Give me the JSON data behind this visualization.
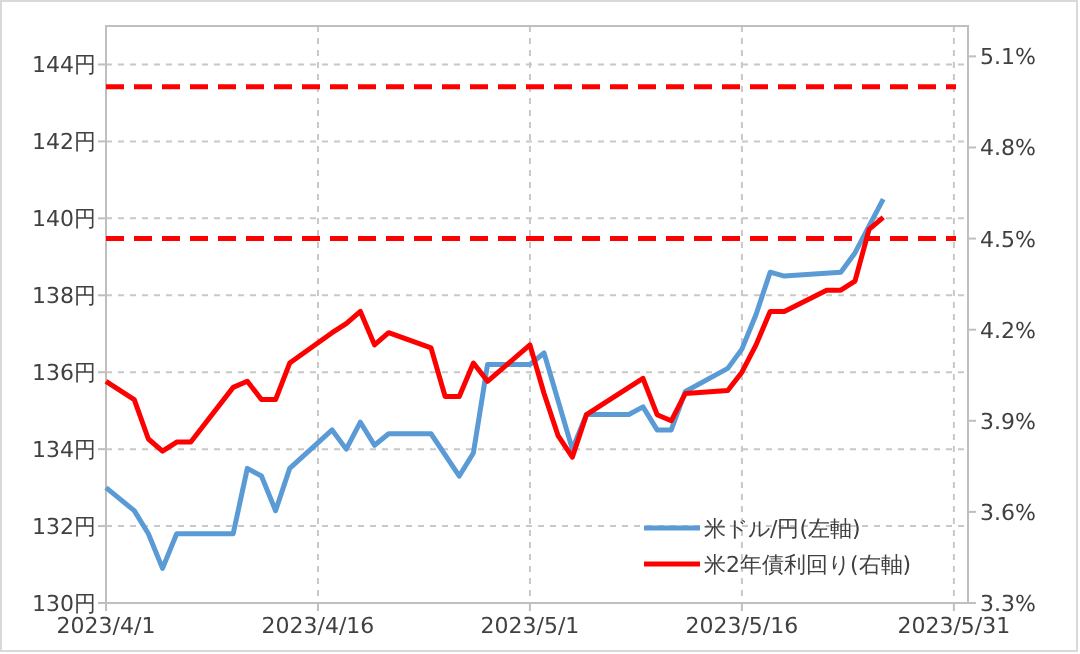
{
  "chart_data": {
    "type": "line",
    "x": [
      "2023-04-01",
      "2023-04-03",
      "2023-04-04",
      "2023-04-05",
      "2023-04-06",
      "2023-04-10",
      "2023-04-11",
      "2023-04-12",
      "2023-04-13",
      "2023-04-14",
      "2023-04-17",
      "2023-04-18",
      "2023-04-19",
      "2023-04-20",
      "2023-04-21",
      "2023-04-24",
      "2023-04-26",
      "2023-04-27",
      "2023-04-28",
      "2023-05-01",
      "2023-05-02",
      "2023-05-04",
      "2023-05-05",
      "2023-05-08",
      "2023-05-09",
      "2023-05-10",
      "2023-05-11",
      "2023-05-12",
      "2023-05-15",
      "2023-05-16",
      "2023-05-17",
      "2023-05-18",
      "2023-05-19",
      "2023-05-23",
      "2023-05-24",
      "2023-05-26"
    ],
    "series": [
      {
        "name": "米ドル/円(左軸)",
        "color": "#5b9bd5",
        "values": [
          133.0,
          132.4,
          131.8,
          130.9,
          131.8,
          131.8,
          133.5,
          133.3,
          132.4,
          133.5,
          134.5,
          134.0,
          134.7,
          134.1,
          134.4,
          134.4,
          133.3,
          133.9,
          136.2,
          136.2,
          136.5,
          134.0,
          134.9,
          134.9,
          135.1,
          134.5,
          134.5,
          135.5,
          136.1,
          136.6,
          137.5,
          138.6,
          138.5,
          138.6,
          139.1,
          140.5
        ]
      },
      {
        "name": "米2年債利回り(右軸)",
        "color": "#ff0000",
        "axis": "y2",
        "x": [
          "2023-04-01",
          "2023-04-03",
          "2023-04-04",
          "2023-04-05",
          "2023-04-06",
          "2023-04-07",
          "2023-04-10",
          "2023-04-11",
          "2023-04-12",
          "2023-04-13",
          "2023-04-14",
          "2023-04-17",
          "2023-04-18",
          "2023-04-19",
          "2023-04-20",
          "2023-04-21",
          "2023-04-24",
          "2023-04-25",
          "2023-04-26",
          "2023-04-27",
          "2023-04-28",
          "2023-05-01",
          "2023-05-02",
          "2023-05-03",
          "2023-05-04",
          "2023-05-05",
          "2023-05-08",
          "2023-05-09",
          "2023-05-10",
          "2023-05-11",
          "2023-05-12",
          "2023-05-15",
          "2023-05-16",
          "2023-05-17",
          "2023-05-18",
          "2023-05-19",
          "2023-05-22",
          "2023-05-23",
          "2023-05-24",
          "2023-05-25",
          "2023-05-26"
        ],
        "values": [
          4.03,
          3.97,
          3.84,
          3.8,
          3.83,
          3.83,
          4.01,
          4.03,
          3.97,
          3.97,
          4.09,
          4.19,
          4.22,
          4.26,
          4.15,
          4.19,
          4.14,
          3.98,
          3.98,
          4.09,
          4.03,
          4.15,
          3.99,
          3.85,
          3.78,
          3.92,
          4.01,
          4.04,
          3.92,
          3.9,
          3.99,
          4.0,
          4.06,
          4.15,
          4.26,
          4.26,
          4.33,
          4.33,
          4.36,
          4.53,
          4.57
        ]
      }
    ],
    "xlim": [
      "2023-04-01",
      "2023-06-01"
    ],
    "xticks": [
      {
        "value": "2023-04-01",
        "label": "2023/4/1"
      },
      {
        "value": "2023-04-16",
        "label": "2023/4/16"
      },
      {
        "value": "2023-05-01",
        "label": "2023/5/1"
      },
      {
        "value": "2023-05-16",
        "label": "2023/5/16"
      },
      {
        "value": "2023-05-31",
        "label": "2023/5/31"
      }
    ],
    "ylim": [
      130,
      145
    ],
    "yticks": [
      {
        "value": 130,
        "label": "130円"
      },
      {
        "value": 132,
        "label": "132円"
      },
      {
        "value": 134,
        "label": "134円"
      },
      {
        "value": 136,
        "label": "136円"
      },
      {
        "value": 138,
        "label": "138円"
      },
      {
        "value": 140,
        "label": "140円"
      },
      {
        "value": 142,
        "label": "142円"
      },
      {
        "value": 144,
        "label": "144円"
      }
    ],
    "y2lim": [
      3.3,
      5.2
    ],
    "y2ticks": [
      {
        "value": 3.3,
        "label": "3.3%"
      },
      {
        "value": 3.6,
        "label": "3.6%"
      },
      {
        "value": 3.9,
        "label": "3.9%"
      },
      {
        "value": 4.2,
        "label": "4.2%"
      },
      {
        "value": 4.5,
        "label": "4.5%"
      },
      {
        "value": 4.8,
        "label": "4.8%"
      },
      {
        "value": 5.1,
        "label": "5.1%"
      }
    ],
    "ref_lines": [
      {
        "axis": "y2",
        "value": 5.0,
        "color": "#ff0000",
        "line_style": "dashed"
      },
      {
        "axis": "y2",
        "value": 4.5,
        "color": "#ff0000",
        "line_style": "dashed"
      }
    ],
    "grid": true,
    "legend": "bottom right"
  }
}
